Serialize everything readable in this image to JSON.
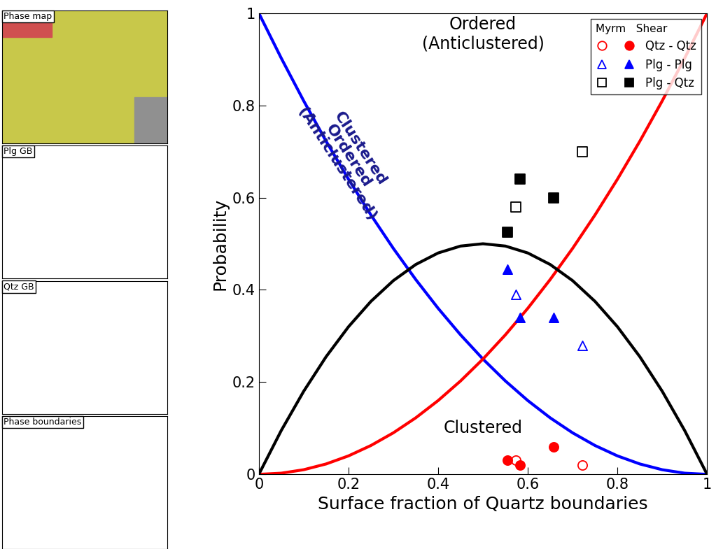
{
  "chart_data": {
    "type": "scatter",
    "xlabel": "Surface fraction of Quartz boundaries",
    "ylabel": "Probability",
    "xlim": [
      0,
      1
    ],
    "ylim": [
      0,
      1
    ],
    "xticks": [
      0,
      0.2,
      0.4,
      0.6,
      0.8,
      1
    ],
    "yticks": [
      0,
      0.2,
      0.4,
      0.6,
      0.8,
      1
    ],
    "legend": "upper right",
    "legend_groups": [
      "Myrm",
      "Shear"
    ],
    "annotations": [
      {
        "text": "Ordered\n(Anticlustered)",
        "x": 0.5,
        "y": 0.955,
        "color": "#000000"
      },
      {
        "text": "Clustered",
        "x": 0.5,
        "y": 0.1,
        "color": "#000000"
      },
      {
        "text": "Clustered\nOrdered\n(Anticlustered)",
        "x": 0.2,
        "y": 0.69,
        "color": "#1a1a8c"
      }
    ],
    "lines": [
      {
        "color": "#0000ff",
        "x": [
          0,
          0.05,
          0.1,
          0.15,
          0.2,
          0.25,
          0.3,
          0.35,
          0.4,
          0.45,
          0.5,
          0.55,
          0.6,
          0.65,
          0.7,
          0.75,
          0.8,
          0.85,
          0.9,
          0.95,
          1
        ],
        "values": [
          1,
          0.9025,
          0.81,
          0.7225,
          0.64,
          0.5625,
          0.49,
          0.4225,
          0.36,
          0.3025,
          0.25,
          0.2025,
          0.16,
          0.1225,
          0.09,
          0.0625,
          0.04,
          0.0225,
          0.01,
          0.0025,
          0
        ]
      },
      {
        "color": "#ff0000",
        "x": [
          0,
          0.05,
          0.1,
          0.15,
          0.2,
          0.25,
          0.3,
          0.35,
          0.4,
          0.45,
          0.5,
          0.55,
          0.6,
          0.65,
          0.7,
          0.75,
          0.8,
          0.85,
          0.9,
          0.95,
          1
        ],
        "values": [
          0,
          0.0025,
          0.01,
          0.0225,
          0.04,
          0.0625,
          0.09,
          0.1225,
          0.16,
          0.2025,
          0.25,
          0.3025,
          0.36,
          0.4225,
          0.49,
          0.5625,
          0.64,
          0.7225,
          0.81,
          0.9025,
          1
        ]
      },
      {
        "color": "#000000",
        "x": [
          0,
          0.05,
          0.1,
          0.15,
          0.2,
          0.25,
          0.3,
          0.35,
          0.4,
          0.45,
          0.5,
          0.55,
          0.6,
          0.65,
          0.7,
          0.75,
          0.8,
          0.85,
          0.9,
          0.95,
          1
        ],
        "values": [
          0,
          0.095,
          0.18,
          0.255,
          0.32,
          0.375,
          0.42,
          0.455,
          0.48,
          0.495,
          0.5,
          0.495,
          0.48,
          0.455,
          0.42,
          0.375,
          0.32,
          0.255,
          0.18,
          0.095,
          0
        ]
      }
    ],
    "series": [
      {
        "name": "Qtz - Qtz",
        "color": "#ff0000",
        "marker": "circle_open",
        "x": [
          0.573,
          0.722
        ],
        "values": [
          0.03,
          0.02
        ]
      },
      {
        "name": "Qtz - Qtz",
        "color": "#ff0000",
        "marker": "circle",
        "x": [
          0.555,
          0.583,
          0.658
        ],
        "values": [
          0.03,
          0.02,
          0.06
        ]
      },
      {
        "name": "Plg - Plg",
        "color": "#0000ff",
        "marker": "triangle_open",
        "x": [
          0.573,
          0.722
        ],
        "values": [
          0.39,
          0.28
        ]
      },
      {
        "name": "Plg - Plg",
        "color": "#0000ff",
        "marker": "triangle",
        "x": [
          0.555,
          0.583,
          0.658
        ],
        "values": [
          0.445,
          0.34,
          0.34
        ]
      },
      {
        "name": "Plg - Qtz",
        "color": "#000000",
        "marker": "square_open",
        "x": [
          0.573,
          0.722
        ],
        "values": [
          0.58,
          0.7
        ]
      },
      {
        "name": "Plg - Qtz",
        "color": "#000000",
        "marker": "square",
        "x": [
          0.555,
          0.583,
          0.658
        ],
        "values": [
          0.525,
          0.64,
          0.6
        ]
      }
    ],
    "panels": [
      "Phase map",
      "Plg GB",
      "Qtz GB",
      "Phase boundaries"
    ]
  }
}
